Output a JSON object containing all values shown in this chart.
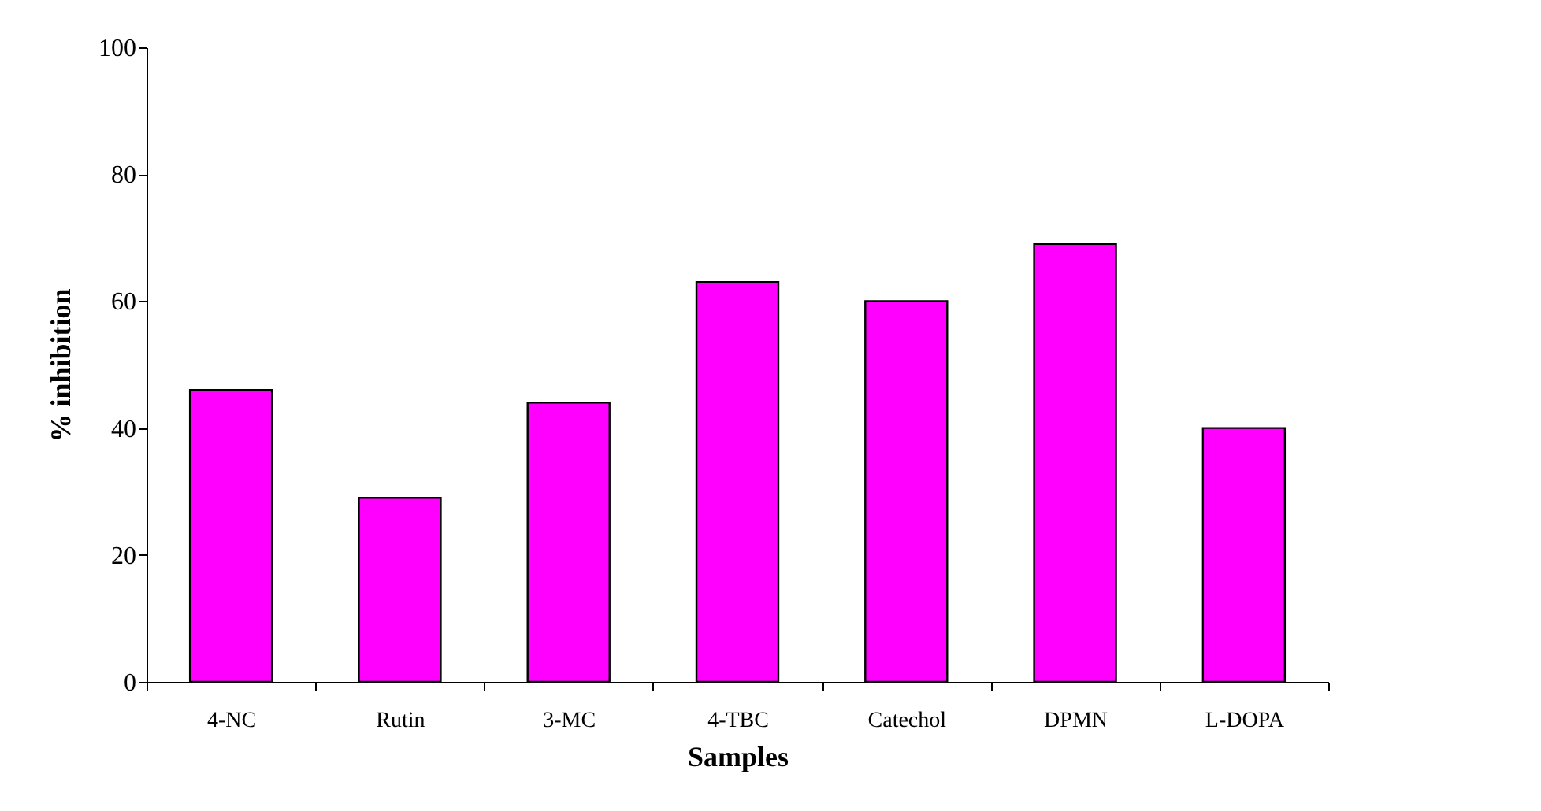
{
  "chart_data": {
    "type": "bar",
    "xlabel": "Samples",
    "ylabel": "% inhibition",
    "categories": [
      "4-NC",
      "Rutin",
      "3-MC",
      "4-TBC",
      "Catechol",
      "DPMN",
      "L-DOPA"
    ],
    "series": [
      {
        "color": "#ff00ff",
        "values": [
          46,
          29,
          44,
          63,
          60,
          69,
          40
        ]
      }
    ],
    "ylim": [
      0,
      100
    ],
    "yticks": [
      0,
      20,
      40,
      60,
      80,
      100
    ],
    "grid": false,
    "legend": false
  }
}
